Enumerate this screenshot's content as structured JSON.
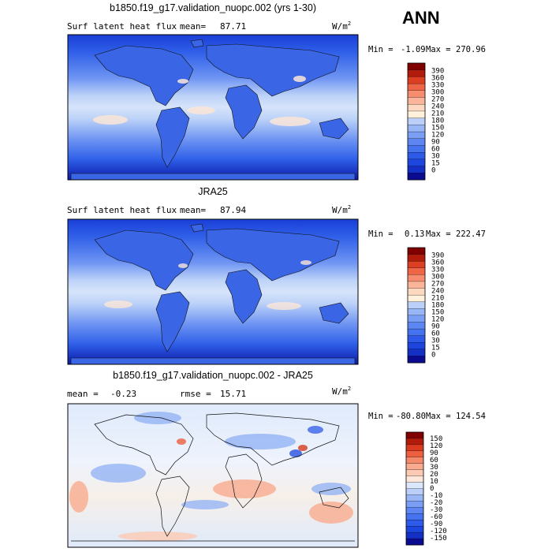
{
  "season": "ANN",
  "units_base": "W/m",
  "units_exp": "2",
  "panels": [
    {
      "title": "b1850.f19_g17.validation_nuopc.002 (yrs 1-30)",
      "left_label": "Surf latent heat flux",
      "stat_label": "mean=",
      "stat_value": "87.71",
      "min_label": "Min =",
      "min_value": "-1.09",
      "max_label": "Max =",
      "max_value": "270.96",
      "palette": [
        "#0b0b92",
        "#1430c4",
        "#1c46dd",
        "#2d5ae8",
        "#4572ee",
        "#5d86f2",
        "#7a9ef4",
        "#98b6f6",
        "#bccff8",
        "#fff1dc",
        "#fcd8c0",
        "#f9b49a",
        "#f68d6f",
        "#ef6647",
        "#dd3f22",
        "#b01b0b",
        "#800000"
      ],
      "colorbar_labels": [
        "390",
        "360",
        "330",
        "300",
        "270",
        "240",
        "210",
        "180",
        "150",
        "120",
        "90",
        "60",
        "30",
        "15",
        "0"
      ]
    },
    {
      "title": "JRA25",
      "left_label": "Surf latent heat flux",
      "stat_label": "mean=",
      "stat_value": "87.94",
      "min_label": "Min =",
      "min_value": "0.13",
      "max_label": "Max =",
      "max_value": "222.47",
      "palette": [
        "#0b0b92",
        "#1430c4",
        "#1c46dd",
        "#2d5ae8",
        "#4572ee",
        "#5d86f2",
        "#7a9ef4",
        "#98b6f6",
        "#bccff8",
        "#fff1dc",
        "#fcd8c0",
        "#f9b49a",
        "#f68d6f",
        "#ef6647",
        "#dd3f22",
        "#b01b0b",
        "#800000"
      ],
      "colorbar_labels": [
        "390",
        "360",
        "330",
        "300",
        "270",
        "240",
        "210",
        "180",
        "150",
        "120",
        "90",
        "60",
        "30",
        "15",
        "0"
      ]
    },
    {
      "title": "b1850.f19_g17.validation_nuopc.002 - JRA25",
      "left_label": "mean =",
      "stat_label": "rmse =",
      "left_value": "-0.23",
      "stat_value": "15.71",
      "min_label": "Min =",
      "min_value": "-80.80",
      "max_label": "Max =",
      "max_value": "124.54",
      "palette": [
        "#0b0b92",
        "#1430c4",
        "#1c46dd",
        "#2d5ae8",
        "#4572ee",
        "#5d86f2",
        "#7a9ef4",
        "#98b6f6",
        "#bccff8",
        "#dbe8fb",
        "#fde6da",
        "#fccab4",
        "#f9ab8f",
        "#f5896b",
        "#ec5f3f",
        "#d93a20",
        "#b01b0b",
        "#800000"
      ],
      "colorbar_labels": [
        "150",
        "120",
        "90",
        "60",
        "30",
        "20",
        "10",
        "0",
        "-10",
        "-20",
        "-30",
        "-60",
        "-90",
        "-120",
        "-150"
      ]
    }
  ]
}
